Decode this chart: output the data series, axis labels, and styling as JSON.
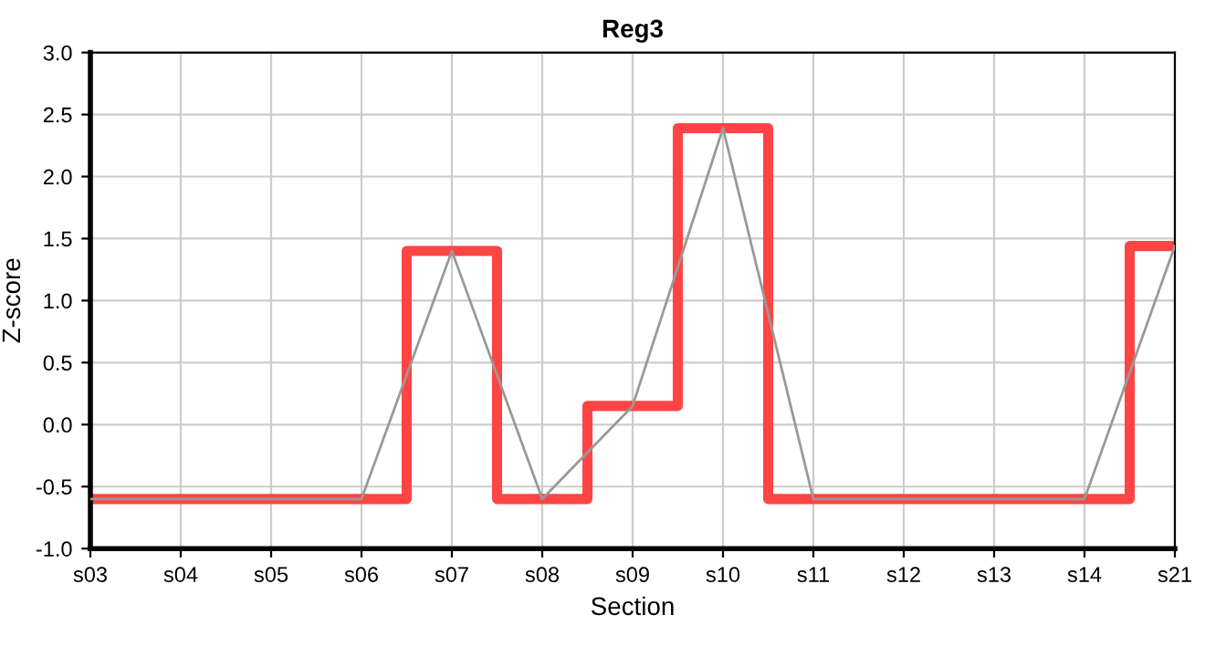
{
  "chart_data": {
    "type": "step",
    "title": "Reg3",
    "xlabel": "Section",
    "ylabel": "Z-score",
    "categories": [
      "s03",
      "s04",
      "s05",
      "s06",
      "s07",
      "s08",
      "s09",
      "s10",
      "s11",
      "s12",
      "s13",
      "s14",
      "s21"
    ],
    "series": [
      {
        "type": "line",
        "color": "#999999",
        "values": [
          -0.6,
          -0.6,
          -0.6,
          -0.6,
          1.4,
          -0.6,
          0.15,
          2.39,
          -0.6,
          -0.6,
          -0.6,
          -0.6,
          1.44
        ]
      },
      {
        "color": "#ff4444",
        "values": [
          -0.6,
          -0.6,
          -0.6,
          -0.6,
          1.4,
          -0.6,
          0.15,
          2.39,
          -0.6,
          -0.6,
          -0.6,
          -0.6,
          1.44
        ]
      }
    ],
    "ylim": [
      -1.0,
      3.0
    ],
    "yticks": [
      {
        "value": -1.0,
        "label": "-1.0"
      },
      {
        "value": -0.5,
        "label": "-0.5"
      },
      {
        "value": 0.0,
        "label": "0.0"
      },
      {
        "value": 0.5,
        "label": "0.5"
      },
      {
        "value": 1.0,
        "label": "1.0"
      },
      {
        "value": 1.5,
        "label": "1.5"
      },
      {
        "value": 2.0,
        "label": "2.0"
      },
      {
        "value": 2.5,
        "label": "2.5"
      },
      {
        "value": 3.0,
        "label": "3.0"
      }
    ],
    "grid": true,
    "legend": false,
    "marker": "none"
  }
}
